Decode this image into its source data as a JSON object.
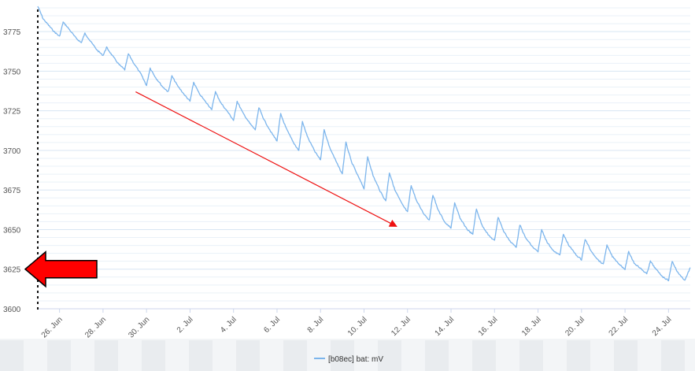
{
  "chart_data": {
    "type": "line",
    "title": "",
    "xlabel": "",
    "ylabel": "",
    "ylim": [
      3600,
      3790
    ],
    "xlim": [
      "2024-06-25",
      "2024-07-25"
    ],
    "yticks": [
      3600,
      3625,
      3650,
      3675,
      3700,
      3725,
      3750,
      3775
    ],
    "xticks": [
      {
        "date": "2024-06-26",
        "label": "26. Jun"
      },
      {
        "date": "2024-06-28",
        "label": "28. Jun"
      },
      {
        "date": "2024-06-30",
        "label": "30. Jun"
      },
      {
        "date": "2024-07-02",
        "label": "2. Jul"
      },
      {
        "date": "2024-07-04",
        "label": "4. Jul"
      },
      {
        "date": "2024-07-06",
        "label": "6. Jul"
      },
      {
        "date": "2024-07-08",
        "label": "8. Jul"
      },
      {
        "date": "2024-07-10",
        "label": "10. Jul"
      },
      {
        "date": "2024-07-12",
        "label": "12. Jul"
      },
      {
        "date": "2024-07-14",
        "label": "14. Jul"
      },
      {
        "date": "2024-07-16",
        "label": "16. Jul"
      },
      {
        "date": "2024-07-18",
        "label": "18. Jul"
      },
      {
        "date": "2024-07-20",
        "label": "20. Jul"
      },
      {
        "date": "2024-07-22",
        "label": "22. Jul"
      },
      {
        "date": "2024-07-24",
        "label": "24. Jul"
      }
    ],
    "grid": true,
    "legend": "bottom-center",
    "series": [
      {
        "name": "[b08ec] bat: mV",
        "color": "#7cb5ec",
        "points": [
          [
            "2024-06-25T00:00",
            3791
          ],
          [
            "2024-06-25T06:00",
            3783
          ],
          [
            "2024-06-25T12:00",
            3779
          ],
          [
            "2024-06-25T18:00",
            3775
          ],
          [
            "2024-06-26T00:00",
            3772
          ],
          [
            "2024-06-26T04:00",
            3781
          ],
          [
            "2024-06-26T10:00",
            3777
          ],
          [
            "2024-06-26T18:00",
            3771
          ],
          [
            "2024-06-27T00:00",
            3768
          ],
          [
            "2024-06-27T04:00",
            3774
          ],
          [
            "2024-06-27T10:00",
            3769
          ],
          [
            "2024-06-27T18:00",
            3763
          ],
          [
            "2024-06-28T00:00",
            3760
          ],
          [
            "2024-06-28T04:00",
            3765
          ],
          [
            "2024-06-28T10:00",
            3760
          ],
          [
            "2024-06-28T18:00",
            3754
          ],
          [
            "2024-06-29T00:00",
            3751
          ],
          [
            "2024-06-29T04:00",
            3761
          ],
          [
            "2024-06-29T10:00",
            3755
          ],
          [
            "2024-06-29T18:00",
            3748
          ],
          [
            "2024-06-30T00:00",
            3741
          ],
          [
            "2024-06-30T04:00",
            3752
          ],
          [
            "2024-06-30T10:00",
            3746
          ],
          [
            "2024-06-30T18:00",
            3740
          ],
          [
            "2024-07-01T00:00",
            3737
          ],
          [
            "2024-07-01T04:00",
            3747
          ],
          [
            "2024-07-01T10:00",
            3741
          ],
          [
            "2024-07-01T18:00",
            3735
          ],
          [
            "2024-07-02T00:00",
            3731
          ],
          [
            "2024-07-02T04:00",
            3743
          ],
          [
            "2024-07-02T10:00",
            3736
          ],
          [
            "2024-07-02T18:00",
            3730
          ],
          [
            "2024-07-03T00:00",
            3726
          ],
          [
            "2024-07-03T04:00",
            3737
          ],
          [
            "2024-07-03T10:00",
            3730
          ],
          [
            "2024-07-03T18:00",
            3724
          ],
          [
            "2024-07-04T00:00",
            3719
          ],
          [
            "2024-07-04T04:00",
            3731
          ],
          [
            "2024-07-04T10:00",
            3724
          ],
          [
            "2024-07-04T18:00",
            3717
          ],
          [
            "2024-07-05T00:00",
            3713
          ],
          [
            "2024-07-05T04:00",
            3727
          ],
          [
            "2024-07-05T10:00",
            3719
          ],
          [
            "2024-07-05T18:00",
            3711
          ],
          [
            "2024-07-06T00:00",
            3706
          ],
          [
            "2024-07-06T04:00",
            3723
          ],
          [
            "2024-07-06T10:00",
            3714
          ],
          [
            "2024-07-06T18:00",
            3705
          ],
          [
            "2024-07-07T00:00",
            3700
          ],
          [
            "2024-07-07T04:00",
            3718
          ],
          [
            "2024-07-07T10:00",
            3708
          ],
          [
            "2024-07-07T18:00",
            3699
          ],
          [
            "2024-07-08T00:00",
            3694
          ],
          [
            "2024-07-08T04:00",
            3713
          ],
          [
            "2024-07-08T10:00",
            3702
          ],
          [
            "2024-07-08T18:00",
            3692
          ],
          [
            "2024-07-09T00:00",
            3685
          ],
          [
            "2024-07-09T04:00",
            3705
          ],
          [
            "2024-07-09T10:00",
            3693
          ],
          [
            "2024-07-09T18:00",
            3683
          ],
          [
            "2024-07-10T00:00",
            3676
          ],
          [
            "2024-07-10T04:00",
            3696
          ],
          [
            "2024-07-10T10:00",
            3684
          ],
          [
            "2024-07-10T18:00",
            3674
          ],
          [
            "2024-07-11T00:00",
            3668
          ],
          [
            "2024-07-11T04:00",
            3686
          ],
          [
            "2024-07-11T10:00",
            3675
          ],
          [
            "2024-07-11T18:00",
            3666
          ],
          [
            "2024-07-12T00:00",
            3661
          ],
          [
            "2024-07-12T04:00",
            3678
          ],
          [
            "2024-07-12T10:00",
            3668
          ],
          [
            "2024-07-12T18:00",
            3660
          ],
          [
            "2024-07-13T00:00",
            3656
          ],
          [
            "2024-07-13T04:00",
            3672
          ],
          [
            "2024-07-13T10:00",
            3662
          ],
          [
            "2024-07-13T18:00",
            3654
          ],
          [
            "2024-07-14T00:00",
            3651
          ],
          [
            "2024-07-14T04:00",
            3667
          ],
          [
            "2024-07-14T10:00",
            3657
          ],
          [
            "2024-07-14T18:00",
            3650
          ],
          [
            "2024-07-15T00:00",
            3647
          ],
          [
            "2024-07-15T04:00",
            3663
          ],
          [
            "2024-07-15T10:00",
            3653
          ],
          [
            "2024-07-15T18:00",
            3646
          ],
          [
            "2024-07-16T00:00",
            3643
          ],
          [
            "2024-07-16T04:00",
            3658
          ],
          [
            "2024-07-16T10:00",
            3649
          ],
          [
            "2024-07-16T18:00",
            3642
          ],
          [
            "2024-07-17T00:00",
            3639
          ],
          [
            "2024-07-17T04:00",
            3653
          ],
          [
            "2024-07-17T10:00",
            3645
          ],
          [
            "2024-07-17T18:00",
            3639
          ],
          [
            "2024-07-18T00:00",
            3636
          ],
          [
            "2024-07-18T04:00",
            3650
          ],
          [
            "2024-07-18T10:00",
            3642
          ],
          [
            "2024-07-18T18:00",
            3636
          ],
          [
            "2024-07-19T00:00",
            3634
          ],
          [
            "2024-07-19T04:00",
            3647
          ],
          [
            "2024-07-19T10:00",
            3640
          ],
          [
            "2024-07-19T18:00",
            3634
          ],
          [
            "2024-07-20T00:00",
            3631
          ],
          [
            "2024-07-20T04:00",
            3644
          ],
          [
            "2024-07-20T10:00",
            3637
          ],
          [
            "2024-07-20T18:00",
            3631
          ],
          [
            "2024-07-21T00:00",
            3628
          ],
          [
            "2024-07-21T04:00",
            3640
          ],
          [
            "2024-07-21T10:00",
            3633
          ],
          [
            "2024-07-21T18:00",
            3628
          ],
          [
            "2024-07-22T00:00",
            3625
          ],
          [
            "2024-07-22T04:00",
            3636
          ],
          [
            "2024-07-22T10:00",
            3629
          ],
          [
            "2024-07-22T18:00",
            3625
          ],
          [
            "2024-07-23T00:00",
            3622
          ],
          [
            "2024-07-23T04:00",
            3630
          ],
          [
            "2024-07-23T10:00",
            3625
          ],
          [
            "2024-07-23T18:00",
            3620
          ],
          [
            "2024-07-24T00:00",
            3618
          ],
          [
            "2024-07-24T04:00",
            3630
          ],
          [
            "2024-07-24T10:00",
            3623
          ],
          [
            "2024-07-24T18:00",
            3618
          ],
          [
            "2024-07-25T00:00",
            3626
          ]
        ]
      }
    ],
    "annotations": [
      {
        "type": "arrow",
        "color": "#ee1111",
        "from": {
          "x": "2024-06-29T12:00",
          "y": 3737
        },
        "to": {
          "x": "2024-07-11T12:00",
          "y": 3652
        }
      },
      {
        "type": "block-arrow",
        "color": "#ff0000",
        "pointing": "left",
        "at": {
          "x": "2024-06-25",
          "y": 3625
        }
      }
    ]
  }
}
